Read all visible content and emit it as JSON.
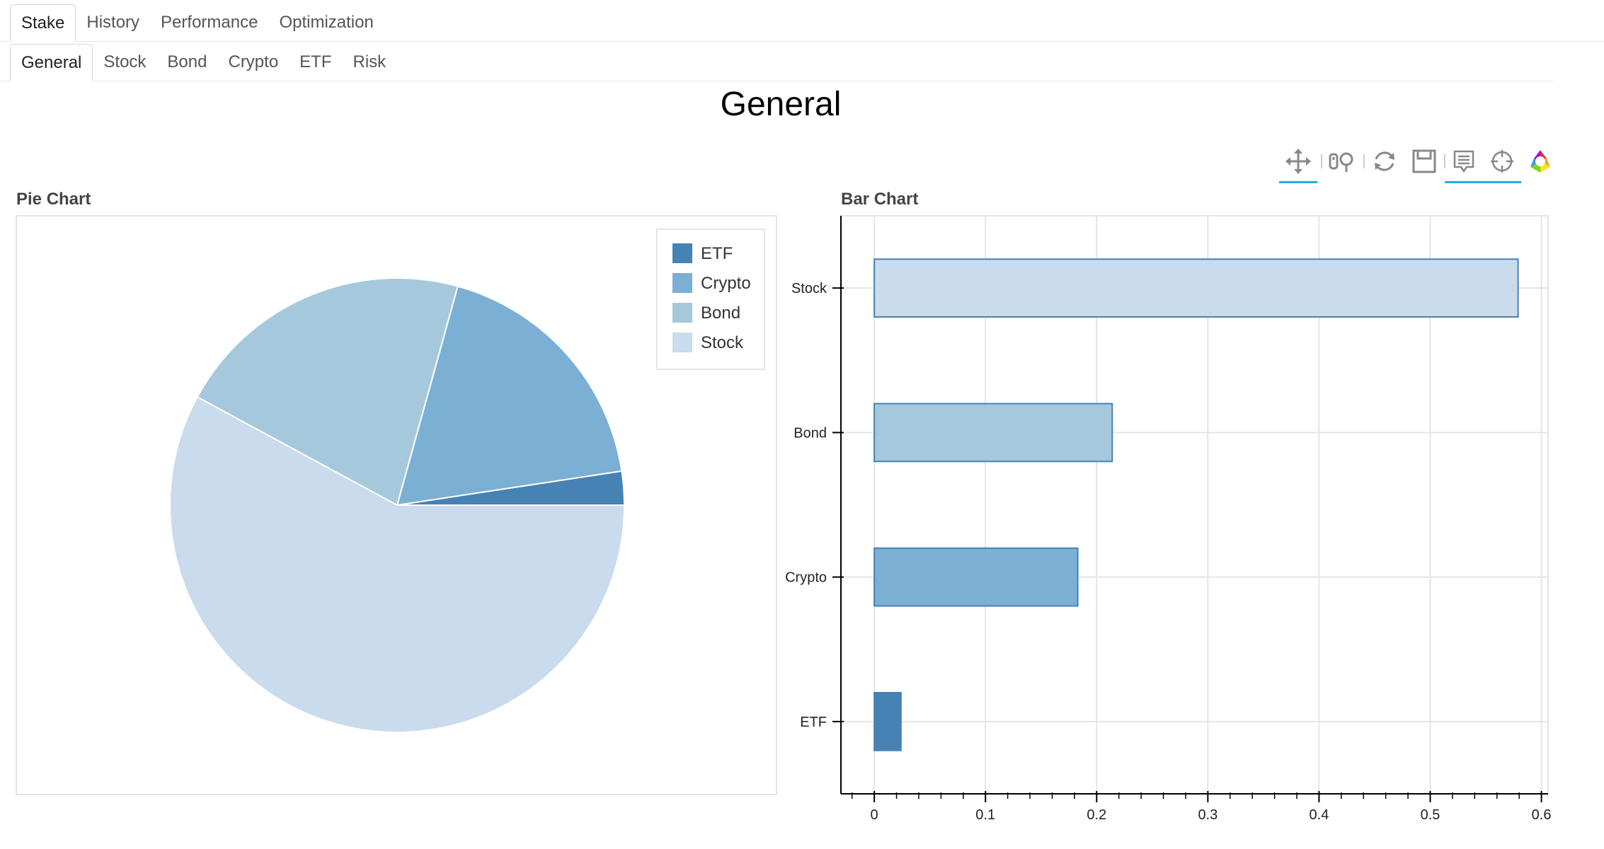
{
  "main_tabs": [
    "Stake",
    "History",
    "Performance",
    "Optimization"
  ],
  "sub_tabs": [
    "General",
    "Stock",
    "Bond",
    "Crypto",
    "ETF",
    "Risk"
  ],
  "page_title": "General",
  "toolbar": {
    "tools": [
      {
        "icon": "pan-icon",
        "active": true
      },
      {
        "icon": "wheel-zoom-icon",
        "active": false
      },
      {
        "icon": "reset-icon",
        "active": false
      },
      {
        "icon": "save-icon",
        "active": false
      },
      {
        "icon": "hover-icon",
        "active": true
      },
      {
        "icon": "crosshair-icon",
        "active": true
      },
      {
        "icon": "bokeh-logo-icon",
        "active": false
      }
    ]
  },
  "colors": {
    "ETF": "#4682b4",
    "Crypto": "#7bafd4",
    "Bond": "#a6c8dc",
    "Stock": "#c9dbec"
  },
  "chart_data": [
    {
      "type": "pie",
      "title": "Pie Chart",
      "categories": [
        "ETF",
        "Crypto",
        "Bond",
        "Stock"
      ],
      "values": [
        0.024,
        0.183,
        0.214,
        0.579
      ],
      "legend": [
        "ETF",
        "Crypto",
        "Bond",
        "Stock"
      ],
      "legend_position": "top-right"
    },
    {
      "type": "bar",
      "orientation": "horizontal",
      "title": "Bar Chart",
      "categories": [
        "ETF",
        "Crypto",
        "Bond",
        "Stock"
      ],
      "values": [
        0.024,
        0.183,
        0.214,
        0.579
      ],
      "xlim": [
        -0.03,
        0.606
      ],
      "xticks": [
        "0",
        "0.1",
        "0.2",
        "0.3",
        "0.4",
        "0.5",
        "0.6"
      ],
      "grid": true
    }
  ]
}
